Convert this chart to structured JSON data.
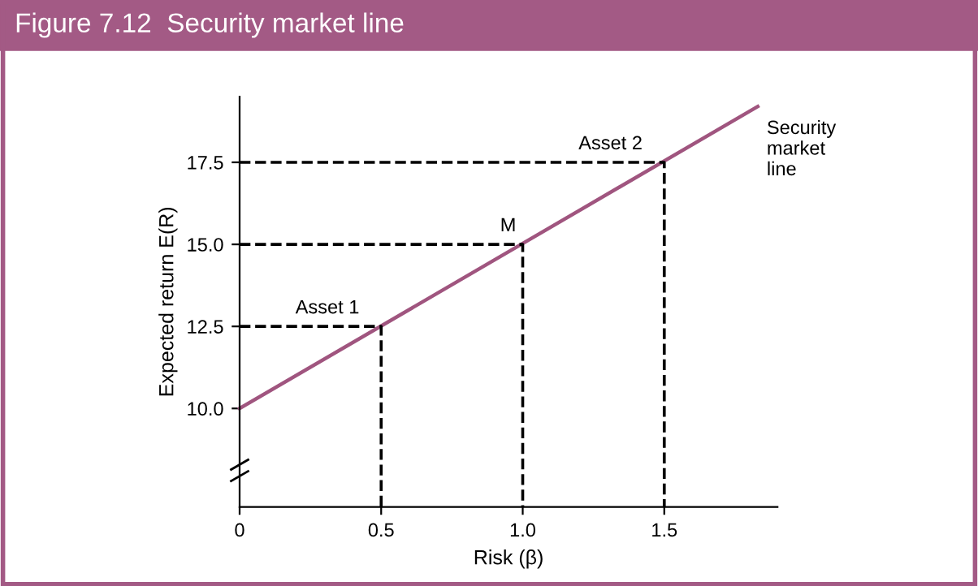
{
  "chart_data": {
    "type": "line",
    "title": "Figure 7.12  Security market line",
    "xlabel": "Risk (β)",
    "ylabel": "Expected return E(R)",
    "xlim": [
      0,
      1.9
    ],
    "ylim": [
      7,
      19.5
    ],
    "xticks": [
      {
        "value": 0,
        "label": "0"
      },
      {
        "value": 0.5,
        "label": "0.5"
      },
      {
        "value": 1.0,
        "label": "1.0"
      },
      {
        "value": 1.5,
        "label": "1.5"
      }
    ],
    "yticks": [
      {
        "value": 10,
        "label": "10.0"
      },
      {
        "value": 12.5,
        "label": "12.5"
      },
      {
        "value": 15,
        "label": "15.0"
      },
      {
        "value": 17.5,
        "label": "17.5"
      }
    ],
    "series": [
      {
        "color": "#a0557f",
        "x": [
          0,
          1.83
        ],
        "values": [
          10,
          19.2
        ],
        "line_style": "solid"
      },
      {
        "color": "#000000",
        "x": [
          0,
          0.5,
          0.5
        ],
        "values": [
          12.5,
          12.5,
          7
        ],
        "line_style": "dashed"
      },
      {
        "color": "#000000",
        "x": [
          0,
          1.0,
          1.0
        ],
        "values": [
          15,
          15,
          7
        ],
        "line_style": "dashed"
      },
      {
        "color": "#000000",
        "x": [
          0,
          1.5,
          1.5
        ],
        "values": [
          17.5,
          17.5,
          7
        ],
        "line_style": "dashed"
      }
    ],
    "annotations": [
      {
        "text": "Asset 1",
        "x": 0.5,
        "y": 12.5
      },
      {
        "text": "M",
        "x": 1.0,
        "y": 15
      },
      {
        "text": "Asset 2",
        "x": 1.5,
        "y": 17.5
      },
      {
        "text": "Security\nmarket\nline",
        "x": 1.83,
        "y": 19.2
      }
    ],
    "grid": false,
    "legend": false,
    "marker": "none"
  }
}
